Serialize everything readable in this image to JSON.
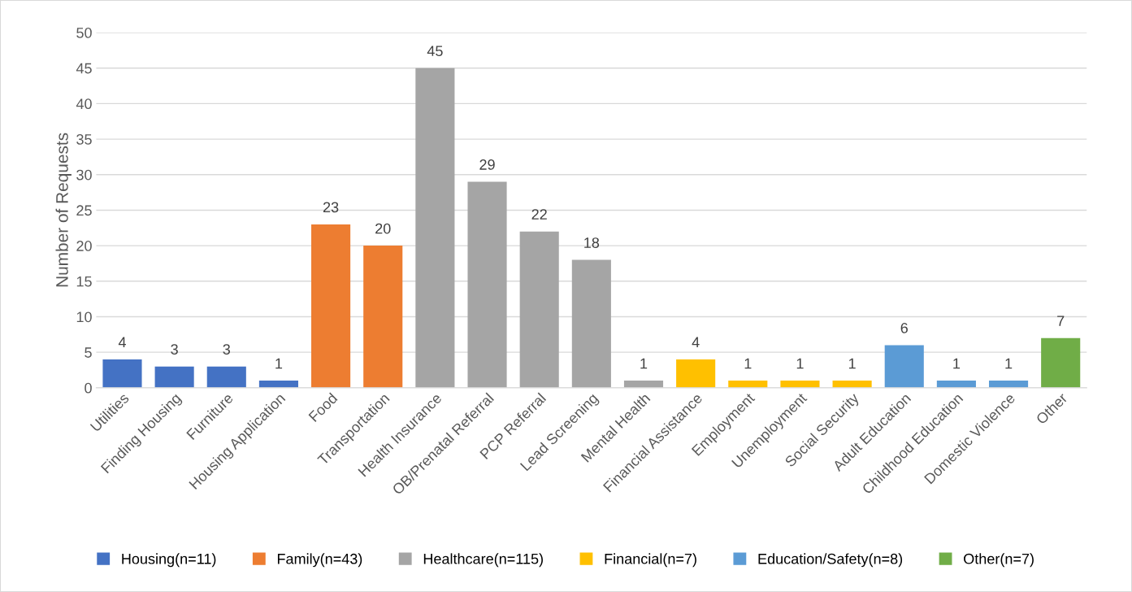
{
  "chart_data": {
    "type": "bar",
    "ylabel": "Number of Requests",
    "categories": [
      "Utilities",
      "Finding Housing",
      "Furniture",
      "Housing Application",
      "Food",
      "Transportation",
      "Health Insurance",
      "OB/Prenatal Referral",
      "PCP Referral",
      "Lead Screening",
      "Mental Health",
      "Financial Assistance",
      "Employment",
      "Unemployment",
      "Social Security",
      "Adult Education",
      "Childhood Education",
      "Domestic Violence",
      "Other"
    ],
    "series": [
      {
        "name": "Housing(n=11)",
        "color": "#4472c4",
        "values": [
          4,
          3,
          3,
          1,
          null,
          null,
          null,
          null,
          null,
          null,
          null,
          null,
          null,
          null,
          null,
          null,
          null,
          null,
          null
        ]
      },
      {
        "name": "Family(n=43)",
        "color": "#ed7d31",
        "values": [
          null,
          null,
          null,
          null,
          23,
          20,
          null,
          null,
          null,
          null,
          null,
          null,
          null,
          null,
          null,
          null,
          null,
          null,
          null
        ]
      },
      {
        "name": "Healthcare(n=115)",
        "color": "#a5a5a5",
        "values": [
          null,
          null,
          null,
          null,
          null,
          null,
          45,
          29,
          22,
          18,
          1,
          null,
          null,
          null,
          null,
          null,
          null,
          null,
          null
        ]
      },
      {
        "name": "Financial(n=7)",
        "color": "#ffc000",
        "values": [
          null,
          null,
          null,
          null,
          null,
          null,
          null,
          null,
          null,
          null,
          null,
          4,
          1,
          1,
          1,
          null,
          null,
          null,
          null
        ]
      },
      {
        "name": "Education/Safety(n=8)",
        "color": "#5b9bd5",
        "values": [
          null,
          null,
          null,
          null,
          null,
          null,
          null,
          null,
          null,
          null,
          null,
          null,
          null,
          null,
          null,
          6,
          1,
          1,
          null
        ]
      },
      {
        "name": "Other(n=7)",
        "color": "#70ad47",
        "values": [
          null,
          null,
          null,
          null,
          null,
          null,
          null,
          null,
          null,
          null,
          null,
          null,
          null,
          null,
          null,
          null,
          null,
          null,
          7
        ]
      }
    ],
    "ylim": [
      0,
      50
    ],
    "yticks": [
      0,
      5,
      10,
      15,
      20,
      25,
      30,
      35,
      40,
      45,
      50
    ],
    "grid": "y",
    "legend": "bottom",
    "data_labels": true
  }
}
